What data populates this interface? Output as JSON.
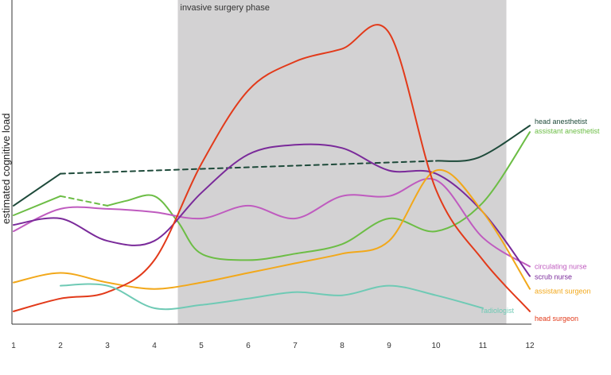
{
  "chart_data": {
    "type": "line",
    "title": "",
    "xlabel": "",
    "ylabel": "estimated cognitive load",
    "x": [
      1,
      2,
      3,
      4,
      5,
      6,
      7,
      8,
      9,
      10,
      11,
      12
    ],
    "xlim": [
      1,
      12
    ],
    "ylim": [
      0,
      100
    ],
    "grid": false,
    "legend": "right-side line-end labels",
    "annotation": {
      "label": "invasive surgery phase",
      "x_start": 4.5,
      "x_end": 11.5,
      "color": "#d3d2d3"
    },
    "series": [
      {
        "name": "head anesthetist",
        "color": "#1e4a3a",
        "values": [
          [
            1,
            37
          ],
          [
            2,
            47
          ],
          [
            10,
            51
          ],
          [
            10.9,
            52
          ],
          [
            12,
            62
          ]
        ],
        "dashed_segments": [
          [
            2,
            10
          ]
        ]
      },
      {
        "name": "assistant anesthetist",
        "color": "#6cbd45",
        "values": [
          [
            1,
            34
          ],
          [
            2,
            40
          ],
          [
            3,
            37
          ],
          [
            3.4,
            38.5
          ],
          [
            4,
            40
          ],
          [
            4.5,
            32
          ],
          [
            5,
            22
          ],
          [
            6,
            20
          ],
          [
            7,
            22
          ],
          [
            8,
            25
          ],
          [
            9,
            33
          ],
          [
            10,
            29
          ],
          [
            11,
            38
          ],
          [
            12,
            60
          ]
        ],
        "dashed_segments": [
          [
            2,
            3
          ]
        ]
      },
      {
        "name": "circulating nurse",
        "color": "#bf5bbf",
        "values": [
          [
            1,
            29
          ],
          [
            2,
            36
          ],
          [
            3,
            36
          ],
          [
            4,
            35
          ],
          [
            5,
            33
          ],
          [
            6,
            37
          ],
          [
            7,
            33
          ],
          [
            8,
            40
          ],
          [
            9,
            40
          ],
          [
            10,
            45
          ],
          [
            11,
            27
          ],
          [
            12,
            18
          ]
        ]
      },
      {
        "name": "scrub nurse",
        "color": "#7a2a9a",
        "values": [
          [
            1,
            31
          ],
          [
            2,
            33
          ],
          [
            3,
            26
          ],
          [
            4,
            26
          ],
          [
            5,
            41
          ],
          [
            6,
            53
          ],
          [
            7,
            56
          ],
          [
            8,
            55
          ],
          [
            9,
            48
          ],
          [
            10,
            47
          ],
          [
            11,
            35
          ],
          [
            12,
            15
          ]
        ]
      },
      {
        "name": "assistant surgeon",
        "color": "#f2a81a",
        "values": [
          [
            1,
            13
          ],
          [
            2,
            16
          ],
          [
            3,
            13
          ],
          [
            4,
            11
          ],
          [
            5,
            13
          ],
          [
            6,
            16
          ],
          [
            7,
            19
          ],
          [
            8,
            22
          ],
          [
            9,
            26
          ],
          [
            10,
            48
          ],
          [
            11,
            35
          ],
          [
            12,
            11
          ]
        ]
      },
      {
        "name": "head surgeon",
        "color": "#e23a1a",
        "values": [
          [
            1,
            4
          ],
          [
            2,
            8
          ],
          [
            3,
            10
          ],
          [
            4,
            20
          ],
          [
            5,
            50
          ],
          [
            6,
            73
          ],
          [
            7,
            82
          ],
          [
            8,
            86
          ],
          [
            9,
            91
          ],
          [
            10,
            42
          ],
          [
            11,
            20
          ],
          [
            12,
            4
          ]
        ]
      },
      {
        "name": "radiologist",
        "color": "#6fcab5",
        "values": [
          [
            2,
            12
          ],
          [
            3,
            12
          ],
          [
            4,
            5
          ],
          [
            5,
            6
          ],
          [
            6,
            8
          ],
          [
            7,
            10
          ],
          [
            8,
            9
          ],
          [
            9,
            12
          ],
          [
            10,
            9
          ],
          [
            11,
            5
          ]
        ]
      }
    ]
  }
}
